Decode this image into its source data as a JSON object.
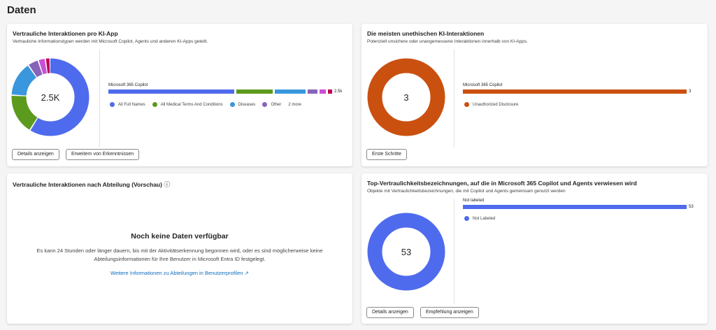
{
  "page_title": "Daten",
  "cards": [
    {
      "title": "Vertrauliche Interaktionen pro KI-App",
      "subtitle": "Vertrauliche Informationstypen werden mit Microsoft Copilot, Agents und anderen KI-Apps geteilt.",
      "center": "2.5K",
      "bar_label": "Microsoft 365 Copilot",
      "bar_value": "2.5k",
      "segments": [
        {
          "name": "All Full Names",
          "share": 0.59,
          "color": "#4f6bed"
        },
        {
          "name": "All Medical Terms And Conditions",
          "share": 0.17,
          "color": "#5c9a1e"
        },
        {
          "name": "Diseases",
          "share": 0.145,
          "color": "#3a96dd"
        },
        {
          "name": "Other",
          "share": 0.045,
          "color": "#8764b8"
        },
        {
          "name": "",
          "share": 0.03,
          "color": "#c94fd6"
        },
        {
          "name": "",
          "share": 0.02,
          "color": "#c30052"
        }
      ],
      "legend": [
        "All Full Names",
        "All Medical Terms And Conditions",
        "Diseases",
        "Other"
      ],
      "legend_more": "2 more",
      "buttons": [
        "Details anzeigen",
        "Erweitern von Erkenntnissen"
      ]
    },
    {
      "title": "Die meisten unethischen KI-Interaktionen",
      "subtitle": "Potenziell unsichere oder unangemessene Interaktionen innerhalb von KI-Apps.",
      "center": "3",
      "bar_label": "Microsoft 365 Copilot",
      "bar_value": "3",
      "segments": [
        {
          "name": "Unauthorized Disclosure",
          "share": 1,
          "color": "#ca5010"
        }
      ],
      "legend": [
        "Unauthorized Disclosure"
      ],
      "buttons": [
        "Erste Schritte"
      ]
    },
    {
      "title": "Vertrauliche Interaktionen nach Abteilung (Vorschau)",
      "empty_title": "Noch keine Daten verfügbar",
      "empty_text_1": "Es kann 24 Stunden oder länger dauern, bis mit der Aktivitätserkennung begonnen wird, oder es sind möglicherweise keine",
      "empty_text_2": "Abteilungsinformationen für Ihre Benutzer in Microsoft Entra ID festgelegt.",
      "link": "Weitere Informationen zu Abteilungen in Benutzerprofilen"
    },
    {
      "title": "Top-Vertraulichkeitsbezeichnungen, auf die in Microsoft 365 Copilot und Agents verwiesen wird",
      "subtitle": "Objekte mit Vertraulichkeitsbezeichnungen, die mit Copilot und Agents gemeinsam genutzt werden",
      "center": "53",
      "bar_label": "Not labeled",
      "bar_value": "53",
      "segments": [
        {
          "name": "Not Labeled",
          "share": 1,
          "color": "#4f6bed"
        }
      ],
      "legend": [
        "Not Labeled"
      ],
      "buttons": [
        "Details anzeigen",
        "Empfehlung anzeigen"
      ]
    }
  ]
}
